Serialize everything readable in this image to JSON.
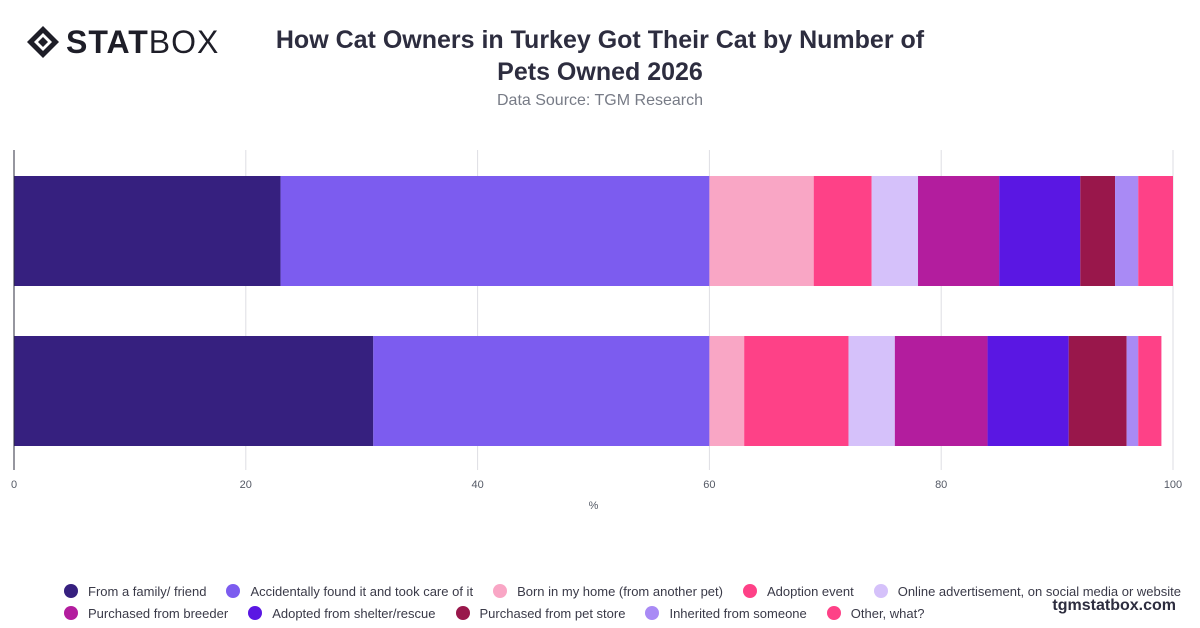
{
  "header": {
    "logo_bold": "STAT",
    "logo_light": "BOX",
    "title_line1": "How Cat Owners in Turkey Got Their Cat by Number of",
    "title_line2": "Pets Owned 2026",
    "subtitle": "Data Source: TGM Research"
  },
  "footer": {
    "brand": "tgmstatbox.com"
  },
  "chart_data": {
    "type": "bar",
    "orientation": "horizontal",
    "stacked": true,
    "xlabel": "%",
    "xlim": [
      0,
      100
    ],
    "xticks": [
      0,
      20,
      40,
      60,
      80,
      100
    ],
    "grid": true,
    "legend_position": "bottom",
    "categories": [
      "",
      ""
    ],
    "series": [
      {
        "name": "From a family/ friend",
        "color": "#36207f",
        "values": [
          23,
          31
        ]
      },
      {
        "name": "Accidentally found it and took care of it",
        "color": "#7c5cef",
        "values": [
          37,
          29
        ]
      },
      {
        "name": "Born in my home (from another pet)",
        "color": "#f9a6c5",
        "values": [
          9,
          3
        ]
      },
      {
        "name": "Adoption event",
        "color": "#fe4187",
        "values": [
          5,
          9
        ]
      },
      {
        "name": "Online advertisement, on social media or website",
        "color": "#d5c1fa",
        "values": [
          4,
          4
        ]
      },
      {
        "name": "Purchased from breeder",
        "color": "#b31d9e",
        "values": [
          7,
          8
        ]
      },
      {
        "name": "Adopted from shelter/rescue",
        "color": "#5a17e3",
        "values": [
          7,
          7
        ]
      },
      {
        "name": "Purchased from pet store",
        "color": "#99174b",
        "values": [
          3,
          5
        ]
      },
      {
        "name": "Inherited from someone",
        "color": "#a98af5",
        "values": [
          2,
          1
        ]
      },
      {
        "name": "Other, what?",
        "color": "#fe4187",
        "values": [
          3,
          2
        ]
      }
    ]
  }
}
